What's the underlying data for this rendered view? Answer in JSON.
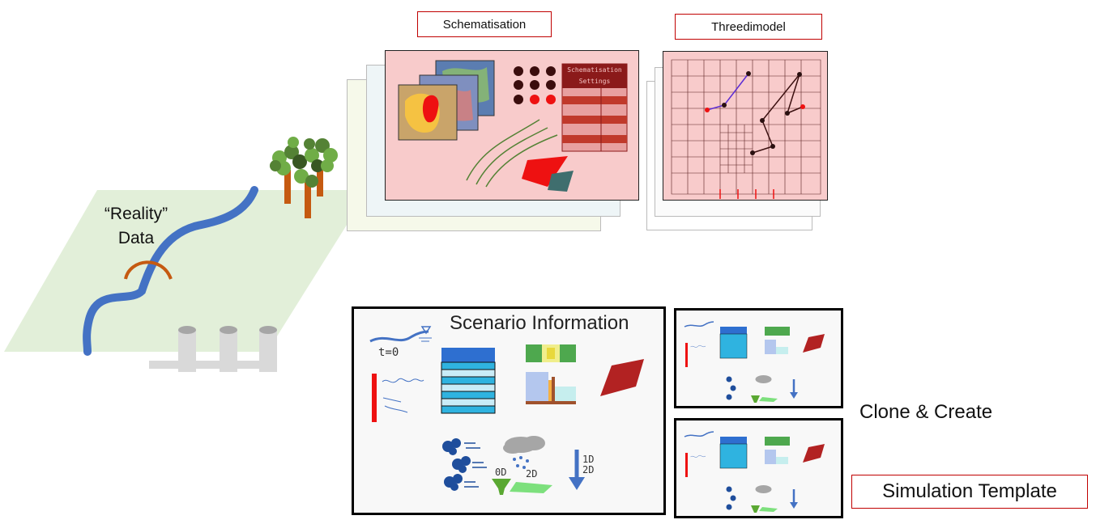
{
  "reality": {
    "line1": "“Reality”",
    "line2": "Data"
  },
  "schematisation": {
    "title": "Schematisation",
    "settings_line1": "Schematisation",
    "settings_line2": "Settings"
  },
  "threedimodel": {
    "title": "Threedimodel"
  },
  "scenario": {
    "title": "Scenario Information",
    "t0_label": "t=0",
    "label_0d": "0D",
    "label_2d": "2D",
    "label_1d_arrow": "1D",
    "label_2d_arrow": "2D"
  },
  "clone_create": "Clone & Create",
  "simulation_template": "Simulation Template",
  "colors": {
    "reality_plane": "#e2efd9",
    "river": "#4472c4",
    "bridge": "#c55a11",
    "schem_sheet": "#f8cbcb",
    "label_border": "#c00000",
    "dark_teal": "#3f6e6e",
    "red": "#ee1111"
  }
}
